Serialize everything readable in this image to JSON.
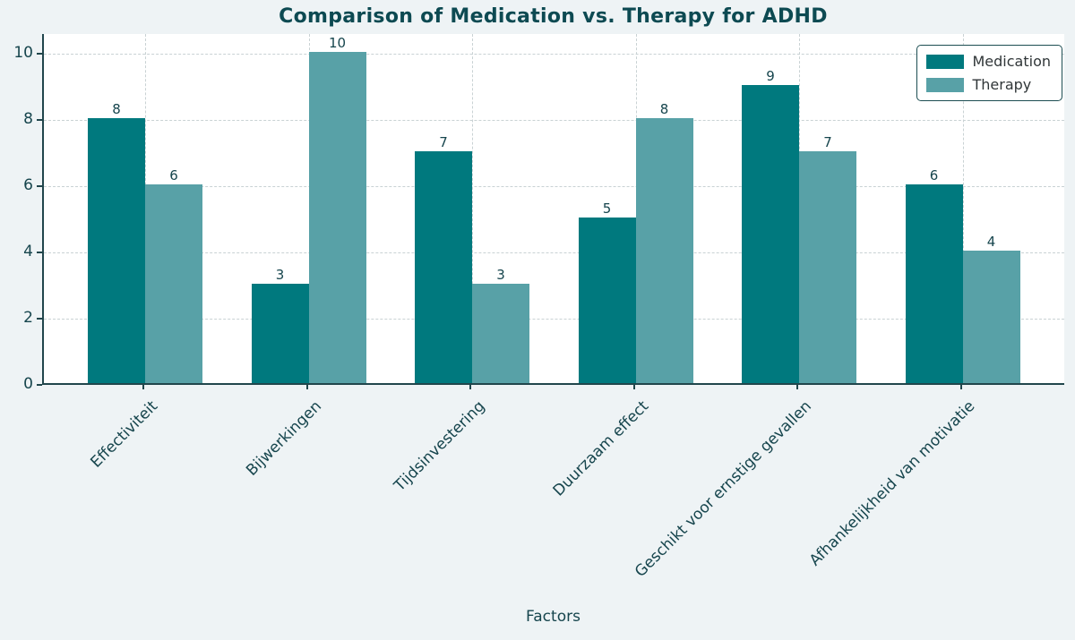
{
  "chart_data": {
    "type": "bar",
    "title": "Comparison of Medication vs. Therapy for ADHD",
    "xlabel": "Factors",
    "ylabel": "",
    "categories": [
      "Effectiviteit",
      "Bijwerkingen",
      "Tijdsinvestering",
      "Duurzaam effect",
      "Geschikt voor ernstige gevallen",
      "Afhankelijkheid van motivatie"
    ],
    "series": [
      {
        "name": "Medication",
        "color": "#00797e",
        "values": [
          8,
          3,
          7,
          5,
          9,
          6
        ]
      },
      {
        "name": "Therapy",
        "color": "#58a1a7",
        "values": [
          6,
          10,
          3,
          8,
          7,
          4
        ]
      }
    ],
    "ylim": [
      0,
      10.6
    ],
    "yticks": [
      0,
      2,
      4,
      6,
      8,
      10
    ],
    "grid": true,
    "grid_style": "dashed",
    "bar_value_labels": true,
    "legend_position": "upper right"
  },
  "colors": {
    "figure_background": "#eef3f5",
    "plot_background": "#ffffff",
    "axis_spine": "#21464c",
    "gridline": "#c9d2d4",
    "text_dark_teal": "#16454d",
    "title": "#0d4a52",
    "medication_bar": "#00797e",
    "therapy_bar": "#58a1a7"
  }
}
